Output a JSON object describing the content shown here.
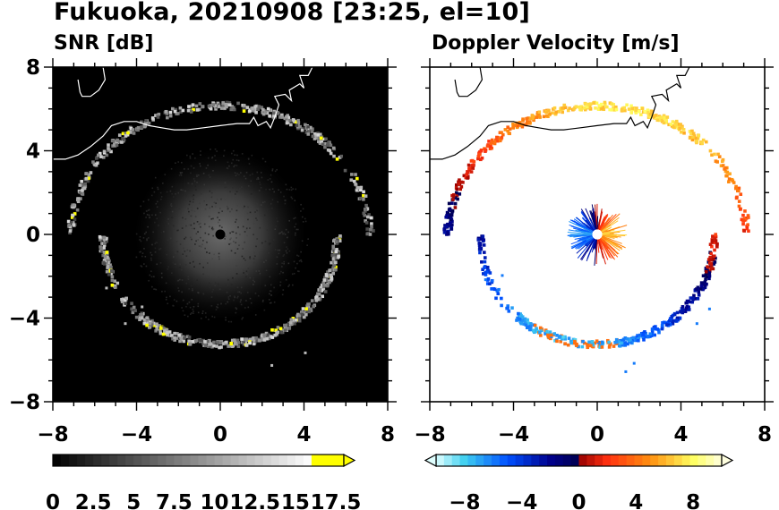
{
  "title": "Fukuoka, 20210908 [23:25, el=10]",
  "chart_data": [
    {
      "type": "heatmap",
      "title": "SNR [dB]",
      "xlabel": "",
      "ylabel": "",
      "xlim": [
        -8,
        8
      ],
      "ylim": [
        -8,
        8
      ],
      "x_ticks": [
        "-8",
        "-4",
        "0",
        "4",
        "8"
      ],
      "y_ticks": [
        "8",
        "4",
        "0",
        "-4",
        "-8"
      ],
      "background_color": "#000000",
      "colorbar": {
        "range": [
          0,
          18
        ],
        "extend": "max",
        "tick_labels": [
          "0",
          "2.5",
          "5",
          "7.5",
          "10",
          "12.5",
          "15",
          "17.5"
        ],
        "colors": [
          "#000000",
          "#ffffff",
          "#ffff00"
        ]
      },
      "coastline_color": "#ffffff"
    },
    {
      "type": "heatmap",
      "title": "Doppler Velocity [m/s]",
      "xlabel": "",
      "ylabel": "",
      "xlim": [
        -8,
        8
      ],
      "ylim": [
        -8,
        8
      ],
      "x_ticks": [
        "-8",
        "-4",
        "0",
        "4",
        "8"
      ],
      "y_ticks": [],
      "background_color": "#ffffff",
      "colorbar": {
        "range": [
          -10,
          10
        ],
        "extend": "both",
        "tick_labels": [
          "-8",
          "-4",
          "0",
          "4",
          "8"
        ],
        "colors": [
          "#e0ffff",
          "#40d0f0",
          "#0050ff",
          "#00008c",
          "#900000",
          "#ff3010",
          "#ff9010",
          "#ffff60",
          "#ffffe0"
        ]
      },
      "coastline_color": "#000000"
    }
  ]
}
